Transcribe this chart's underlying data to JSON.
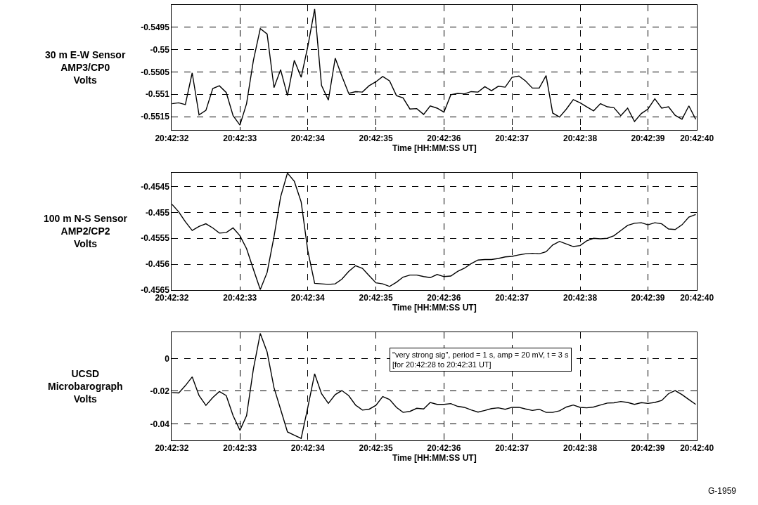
{
  "chart_data": [
    {
      "type": "line",
      "ylabel": "30 m E-W Sensor\nAMP3/CP0\nVolts",
      "xlabel": "Time [HH:MM:SS UT]",
      "x": [
        20.708889,
        20.708917,
        20.708944,
        20.708972,
        20.709,
        20.709028,
        20.709056,
        20.709083,
        20.709111,
        20.709139,
        20.709167,
        20.709194,
        20.709222,
        20.70925,
        20.709278,
        20.709306,
        20.709333,
        20.709361,
        20.709389,
        20.709417,
        20.709444,
        20.709472,
        20.7095,
        20.709528,
        20.709556,
        20.709583,
        20.709611,
        20.709639,
        20.709667,
        20.709694,
        20.709722,
        20.70975,
        20.709778,
        20.709806,
        20.709833,
        20.709861,
        20.709889,
        20.709917,
        20.709944,
        20.709972,
        20.71,
        20.710028,
        20.710056,
        20.710083,
        20.710111,
        20.710139,
        20.710167,
        20.710194,
        20.710222,
        20.71025,
        20.710278,
        20.710306,
        20.710333,
        20.710361,
        20.710389,
        20.710417,
        20.710444,
        20.710472,
        20.7105,
        20.710528,
        20.710556,
        20.710583,
        20.710611,
        20.710639,
        20.710667,
        20.710694,
        20.710722,
        20.71075,
        20.710778,
        20.710806,
        20.710833,
        20.710861,
        20.710889,
        20.710917,
        20.710944,
        20.710972,
        20.711,
        20.711028
      ],
      "series": [
        {
          "color": "#000000",
          "values": [
            -0.55121,
            -0.55119,
            -0.55123,
            -0.55052,
            -0.55146,
            -0.55136,
            -0.55087,
            -0.55081,
            -0.55096,
            -0.55148,
            -0.55169,
            -0.55121,
            -0.55024,
            -0.54953,
            -0.54965,
            -0.55085,
            -0.55045,
            -0.55103,
            -0.55024,
            -0.55062,
            -0.54993,
            -0.54909,
            -0.5508,
            -0.55113,
            -0.55019,
            -0.55059,
            -0.55098,
            -0.55094,
            -0.55095,
            -0.55081,
            -0.55072,
            -0.5506,
            -0.5507,
            -0.55103,
            -0.55108,
            -0.55133,
            -0.55132,
            -0.55145,
            -0.55126,
            -0.55131,
            -0.5514,
            -0.55101,
            -0.55098,
            -0.55099,
            -0.55094,
            -0.55095,
            -0.55083,
            -0.55092,
            -0.55082,
            -0.55084,
            -0.55062,
            -0.55059,
            -0.5507,
            -0.55086,
            -0.55086,
            -0.55058,
            -0.55142,
            -0.55151,
            -0.55133,
            -0.55112,
            -0.55119,
            -0.55128,
            -0.55137,
            -0.55121,
            -0.55128,
            -0.5513,
            -0.55148,
            -0.55131,
            -0.55161,
            -0.55143,
            -0.55133,
            -0.5511,
            -0.55131,
            -0.55128,
            -0.55147,
            -0.55156,
            -0.55126,
            -0.55156
          ]
        }
      ],
      "xlim": [
        20.708889,
        20.711033
      ],
      "xticks": [
        {
          "value": 20.708889,
          "label": "20:42:32"
        },
        {
          "value": 20.709167,
          "label": "20:42:33"
        },
        {
          "value": 20.709444,
          "label": "20:42:34"
        },
        {
          "value": 20.709722,
          "label": "20:42:35"
        },
        {
          "value": 20.71,
          "label": "20:42:36"
        },
        {
          "value": 20.710278,
          "label": "20:42:37"
        },
        {
          "value": 20.710556,
          "label": "20:42:38"
        },
        {
          "value": 20.710833,
          "label": "20:42:39"
        },
        {
          "value": 20.711033,
          "label": "20:42:40"
        }
      ],
      "ylim": [
        -0.5518,
        -0.549
      ],
      "yticks": [
        -0.5515,
        -0.551,
        -0.5505,
        -0.55,
        -0.5495
      ],
      "grid": true
    },
    {
      "type": "line",
      "ylabel": "100 m N-S Sensor\nAMP2/CP2\nVolts",
      "xlabel": "Time [HH:MM:SS UT]",
      "x": [
        20.708889,
        20.708917,
        20.708944,
        20.708972,
        20.709,
        20.709028,
        20.709056,
        20.709083,
        20.709111,
        20.709139,
        20.709167,
        20.709194,
        20.709222,
        20.70925,
        20.709278,
        20.709306,
        20.709333,
        20.709361,
        20.709389,
        20.709417,
        20.709444,
        20.709472,
        20.7095,
        20.709528,
        20.709556,
        20.709583,
        20.709611,
        20.709639,
        20.709667,
        20.709694,
        20.709722,
        20.70975,
        20.709778,
        20.709806,
        20.709833,
        20.709861,
        20.709889,
        20.709917,
        20.709944,
        20.709972,
        20.71,
        20.710028,
        20.710056,
        20.710083,
        20.710111,
        20.710139,
        20.710167,
        20.710194,
        20.710222,
        20.71025,
        20.710278,
        20.710306,
        20.710333,
        20.710361,
        20.710389,
        20.710417,
        20.710444,
        20.710472,
        20.7105,
        20.710528,
        20.710556,
        20.710583,
        20.710611,
        20.710639,
        20.710667,
        20.710694,
        20.710722,
        20.71075,
        20.710778,
        20.710806,
        20.710833,
        20.710861,
        20.710889,
        20.710917,
        20.710944,
        20.710972,
        20.711,
        20.711028
      ],
      "series": [
        {
          "color": "#000000",
          "values": [
            -0.45484,
            -0.45499,
            -0.45518,
            -0.45535,
            -0.45527,
            -0.45522,
            -0.4553,
            -0.4554,
            -0.45539,
            -0.4553,
            -0.45545,
            -0.4557,
            -0.4561,
            -0.45649,
            -0.45616,
            -0.45547,
            -0.4547,
            -0.45424,
            -0.4544,
            -0.4548,
            -0.45574,
            -0.45637,
            -0.45638,
            -0.45639,
            -0.45638,
            -0.45629,
            -0.45614,
            -0.45603,
            -0.45608,
            -0.45622,
            -0.45636,
            -0.45638,
            -0.45643,
            -0.45635,
            -0.45625,
            -0.45621,
            -0.45621,
            -0.45624,
            -0.45626,
            -0.4562,
            -0.45624,
            -0.45623,
            -0.45614,
            -0.45608,
            -0.45599,
            -0.45592,
            -0.45591,
            -0.45591,
            -0.45589,
            -0.45586,
            -0.45585,
            -0.45582,
            -0.4558,
            -0.45579,
            -0.4558,
            -0.45576,
            -0.45563,
            -0.45556,
            -0.45561,
            -0.45566,
            -0.45564,
            -0.45555,
            -0.4555,
            -0.45551,
            -0.4555,
            -0.45545,
            -0.45535,
            -0.45525,
            -0.45521,
            -0.4552,
            -0.45524,
            -0.4552,
            -0.45522,
            -0.45532,
            -0.45533,
            -0.45524,
            -0.45509,
            -0.45504
          ]
        }
      ],
      "xlim": [
        20.708889,
        20.711033
      ],
      "xticks": [
        {
          "value": 20.708889,
          "label": "20:42:32"
        },
        {
          "value": 20.709167,
          "label": "20:42:33"
        },
        {
          "value": 20.709444,
          "label": "20:42:34"
        },
        {
          "value": 20.709722,
          "label": "20:42:35"
        },
        {
          "value": 20.71,
          "label": "20:42:36"
        },
        {
          "value": 20.710278,
          "label": "20:42:37"
        },
        {
          "value": 20.710556,
          "label": "20:42:38"
        },
        {
          "value": 20.710833,
          "label": "20:42:39"
        },
        {
          "value": 20.711033,
          "label": "20:42:40"
        }
      ],
      "ylim": [
        -0.4565,
        -0.45423
      ],
      "yticks": [
        -0.4565,
        -0.456,
        -0.4555,
        -0.455,
        -0.4545
      ],
      "grid": true
    },
    {
      "type": "line",
      "ylabel": "UCSD\nMicrobarograph\nVolts",
      "xlabel": "Time [HH:MM:SS UT]",
      "x": [
        20.708889,
        20.708917,
        20.708944,
        20.708972,
        20.709,
        20.709028,
        20.709056,
        20.709083,
        20.709111,
        20.709139,
        20.709167,
        20.709194,
        20.709222,
        20.70925,
        20.709278,
        20.709306,
        20.709333,
        20.709361,
        20.709389,
        20.709417,
        20.709444,
        20.709472,
        20.7095,
        20.709528,
        20.709556,
        20.709583,
        20.709611,
        20.709639,
        20.709667,
        20.709694,
        20.709722,
        20.70975,
        20.709778,
        20.709806,
        20.709833,
        20.709861,
        20.709889,
        20.709917,
        20.709944,
        20.709972,
        20.71,
        20.710028,
        20.710056,
        20.710083,
        20.710111,
        20.710139,
        20.710167,
        20.710194,
        20.710222,
        20.71025,
        20.710278,
        20.710306,
        20.710333,
        20.710361,
        20.710389,
        20.710417,
        20.710444,
        20.710472,
        20.7105,
        20.710528,
        20.710556,
        20.710583,
        20.710611,
        20.710639,
        20.710667,
        20.710694,
        20.710722,
        20.71075,
        20.710778,
        20.710806,
        20.710833,
        20.710861,
        20.710889,
        20.710917,
        20.710944,
        20.710972,
        20.711,
        20.711028
      ],
      "series": [
        {
          "color": "#000000",
          "values": [
            -0.0208,
            -0.0211,
            -0.0166,
            -0.0112,
            -0.0227,
            -0.0287,
            -0.0239,
            -0.0202,
            -0.0227,
            -0.035,
            -0.044,
            -0.035,
            -0.0063,
            0.0155,
            0.004,
            -0.0178,
            -0.0311,
            -0.045,
            -0.047,
            -0.049,
            -0.03,
            -0.0093,
            -0.0215,
            -0.0275,
            -0.0221,
            -0.0196,
            -0.0227,
            -0.0285,
            -0.0316,
            -0.0311,
            -0.0287,
            -0.0233,
            -0.0251,
            -0.0299,
            -0.033,
            -0.0324,
            -0.0305,
            -0.0309,
            -0.0269,
            -0.0281,
            -0.0281,
            -0.0276,
            -0.0293,
            -0.0299,
            -0.0315,
            -0.0328,
            -0.0318,
            -0.0307,
            -0.0302,
            -0.0311,
            -0.0299,
            -0.0299,
            -0.0309,
            -0.0318,
            -0.0311,
            -0.033,
            -0.033,
            -0.032,
            -0.0297,
            -0.0285,
            -0.0299,
            -0.0302,
            -0.0297,
            -0.0285,
            -0.0273,
            -0.0271,
            -0.0263,
            -0.0269,
            -0.0281,
            -0.027,
            -0.0275,
            -0.0269,
            -0.0257,
            -0.0215,
            -0.0196,
            -0.0221,
            -0.0251,
            -0.0281
          ]
        }
      ],
      "xlim": [
        20.708889,
        20.711033
      ],
      "xticks": [
        {
          "value": 20.708889,
          "label": "20:42:32"
        },
        {
          "value": 20.709167,
          "label": "20:42:33"
        },
        {
          "value": 20.709444,
          "label": "20:42:34"
        },
        {
          "value": 20.709722,
          "label": "20:42:35"
        },
        {
          "value": 20.71,
          "label": "20:42:36"
        },
        {
          "value": 20.710278,
          "label": "20:42:37"
        },
        {
          "value": 20.710556,
          "label": "20:42:38"
        },
        {
          "value": 20.710833,
          "label": "20:42:39"
        },
        {
          "value": 20.711033,
          "label": "20:42:40"
        }
      ],
      "ylim": [
        -0.05,
        0.016
      ],
      "yticks": [
        -0.04,
        -0.02,
        0
      ],
      "grid": true,
      "annotations": [
        "\"very strong sig\", period = 1 s, amp = 20 mV, t = 3 s\n[for 20:42:28 to 20:42:31 UT]",
        "G-1959"
      ]
    }
  ]
}
